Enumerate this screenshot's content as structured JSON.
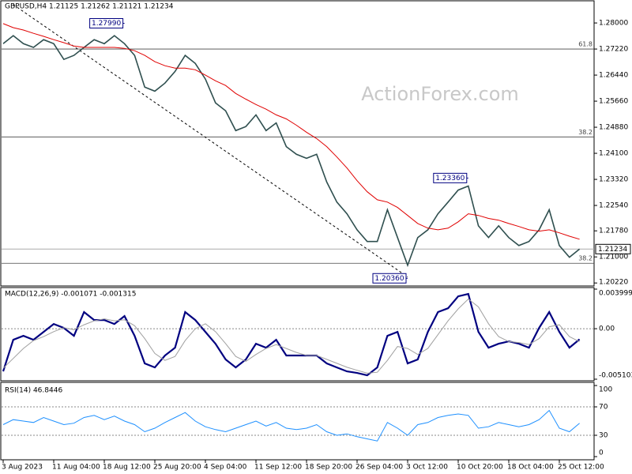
{
  "chart_data": [
    {
      "type": "line",
      "title": "GBPUSD,H4  1.21125 1.21262 1.21121 1.21234",
      "watermark": "ActionForex.com",
      "ylim": [
        1.2013,
        1.2864
      ],
      "yticks": [
        {
          "value": 1.28,
          "label": "1.28000"
        },
        {
          "value": 1.2722,
          "label": "1.27220"
        },
        {
          "value": 1.2644,
          "label": "1.26440"
        },
        {
          "value": 1.2566,
          "label": "1.25660"
        },
        {
          "value": 1.2488,
          "label": "1.24880"
        },
        {
          "value": 1.241,
          "label": "1.24100"
        },
        {
          "value": 1.2332,
          "label": "1.23320"
        },
        {
          "value": 1.2254,
          "label": "1.22540"
        },
        {
          "value": 1.2178,
          "label": "1.21780"
        },
        {
          "value": 1.21,
          "label": "1.21000"
        },
        {
          "value": 1.2022,
          "label": "1.20220"
        }
      ],
      "series": [
        {
          "color": "#2f4f4f",
          "values": [
            1.2738,
            1.2762,
            1.2738,
            1.2727,
            1.275,
            1.2738,
            1.2691,
            1.2703,
            1.2727,
            1.275,
            1.2738,
            1.2762,
            1.2738,
            1.2703,
            1.2608,
            1.2596,
            1.262,
            1.2655,
            1.2703,
            1.2679,
            1.2632,
            1.2561,
            1.2537,
            1.2478,
            1.249,
            1.2525,
            1.2478,
            1.2501,
            1.243,
            1.2407,
            1.2395,
            1.2407,
            1.2324,
            1.2264,
            1.2229,
            1.2181,
            1.2146,
            1.2146,
            1.2241,
            1.2158,
            1.2075,
            1.2158,
            1.2181,
            1.2229,
            1.2264,
            1.23,
            1.2312,
            1.2193,
            1.2158,
            1.2193,
            1.2158,
            1.2134,
            1.2146,
            1.2181,
            1.2241,
            1.2134,
            1.2099,
            1.21234
          ]
        },
        {
          "color": "#e00000",
          "values": [
            1.2798,
            1.2786,
            1.2779,
            1.2769,
            1.276,
            1.275,
            1.2741,
            1.2731,
            1.2727,
            1.2727,
            1.2727,
            1.2727,
            1.2724,
            1.2717,
            1.2703,
            1.2684,
            1.2672,
            1.2665,
            1.2665,
            1.266,
            1.2644,
            1.2627,
            1.2613,
            1.2589,
            1.2572,
            1.2556,
            1.2542,
            1.2525,
            1.2513,
            1.2494,
            1.2473,
            1.2454,
            1.243,
            1.2399,
            1.2366,
            1.2328,
            1.2295,
            1.2271,
            1.2264,
            1.2248,
            1.2224,
            1.22,
            1.2186,
            1.2181,
            1.2186,
            1.2205,
            1.2229,
            1.2224,
            1.2215,
            1.221,
            1.22,
            1.2191,
            1.2181,
            1.2177,
            1.2181,
            1.2172,
            1.2162,
            1.2153
          ]
        }
      ],
      "levels": [
        {
          "value": 1.2722,
          "label": "61.8"
        },
        {
          "value": 1.2459,
          "label": "38.2"
        },
        {
          "value": 1.2081,
          "label": "38.2"
        }
      ],
      "current": 1.21234,
      "annotations": [
        {
          "index": 12,
          "value": 1.2799,
          "label": "1.27990"
        },
        {
          "index": 46,
          "value": 1.2336,
          "label": "1.23360"
        },
        {
          "index": 40,
          "value": 1.2036,
          "label": "1.20360"
        }
      ],
      "trendline": {
        "x": [
          1,
          40
        ],
        "values": [
          1.2855,
          1.204
        ]
      }
    },
    {
      "type": "line",
      "title": "MACD(12,26,9) -0.001071 -0.001315",
      "ylim": [
        -0.005103,
        0.003999
      ],
      "yticks": [
        0.003999,
        {
          "value": 0,
          "label": "0.00"
        },
        -0.005103
      ],
      "levels": [
        {
          "value": 0
        }
      ],
      "series": [
        {
          "color": "#000080",
          "values": [
            -0.00431,
            -0.00112,
            -0.00072,
            -0.00112,
            -0.00032,
            0.00048,
            8e-05,
            -0.00072,
            0.00168,
            0.00088,
            0.00088,
            0.00048,
            0.00128,
            -0.00072,
            -0.00351,
            -0.00391,
            -0.00271,
            -0.00192,
            0.00168,
            0.00088,
            -0.00032,
            -0.00152,
            -0.00311,
            -0.00391,
            -0.00311,
            -0.00152,
            -0.00192,
            -0.00112,
            -0.00271,
            -0.00271,
            -0.00271,
            -0.00271,
            -0.00351,
            -0.00391,
            -0.00431,
            -0.00447,
            -0.00471,
            -0.00391,
            -0.00072,
            -0.00032,
            -0.00351,
            -0.00311,
            -0.00032,
            0.00168,
            0.00207,
            0.00327,
            0.00351,
            -0.00032,
            -0.00192,
            -0.00152,
            -0.00128,
            -0.00152,
            -0.00192,
            8e-05,
            0.00168,
            -0.00032,
            -0.00192,
            -0.001071
          ]
        },
        {
          "color": "#a0a0a0",
          "values": [
            -0.004,
            -0.003,
            -0.002,
            -0.0012,
            -0.0008,
            -0.0003,
            0.0001,
            -0.0001,
            0.0004,
            0.0008,
            0.001,
            0.0008,
            0.0009,
            0.0003,
            -0.001,
            -0.0025,
            -0.0032,
            -0.0028,
            -0.0012,
            0,
            0.0005,
            -0.0003,
            -0.0015,
            -0.0028,
            -0.0033,
            -0.0026,
            -0.002,
            -0.0016,
            -0.002,
            -0.0024,
            -0.0027,
            -0.0027,
            -0.0031,
            -0.0035,
            -0.0039,
            -0.0042,
            -0.0045,
            -0.0044,
            -0.0032,
            -0.0018,
            -0.002,
            -0.0026,
            -0.002,
            -0.0006,
            0.0008,
            0.002,
            0.003,
            0.0022,
            0.0005,
            -0.0008,
            -0.0013,
            -0.0014,
            -0.0016,
            -0.001,
            0.0002,
            0.0004,
            -0.0008,
            -0.001315
          ]
        }
      ]
    },
    {
      "type": "line",
      "title": "RSI(14) 46.8446",
      "ylim": [
        0,
        100
      ],
      "yticks": [
        100,
        70,
        30,
        0
      ],
      "levels": [
        {
          "value": 70
        },
        {
          "value": 30
        }
      ],
      "series": [
        {
          "color": "#1e90ff",
          "values": [
            45,
            52,
            50,
            48,
            55,
            50,
            45,
            47,
            55,
            58,
            52,
            57,
            50,
            45,
            35,
            40,
            48,
            55,
            62,
            50,
            42,
            38,
            35,
            40,
            45,
            50,
            43,
            48,
            40,
            38,
            40,
            45,
            35,
            30,
            32,
            28,
            25,
            22,
            48,
            40,
            30,
            45,
            48,
            55,
            58,
            60,
            58,
            40,
            42,
            48,
            45,
            42,
            45,
            52,
            65,
            40,
            35,
            46.8446
          ]
        }
      ],
      "categories": [
        "3 Aug 2023",
        null,
        null,
        null,
        null,
        "11 Aug 04:00",
        null,
        null,
        null,
        null,
        "18 Aug 12:00",
        null,
        null,
        null,
        null,
        "25 Aug 20:00",
        null,
        null,
        null,
        null,
        "4 Sep 04:00",
        null,
        null,
        null,
        null,
        "11 Sep 12:00",
        null,
        null,
        null,
        null,
        "18 Sep 20:00",
        null,
        null,
        null,
        null,
        "26 Sep 04:00",
        null,
        null,
        null,
        null,
        "3 Oct 12:00",
        null,
        null,
        null,
        null,
        "10 Oct 20:00",
        null,
        null,
        null,
        null,
        "18 Oct 04:00",
        null,
        null,
        null,
        null,
        "25 Oct 12:00",
        null,
        null
      ]
    }
  ]
}
